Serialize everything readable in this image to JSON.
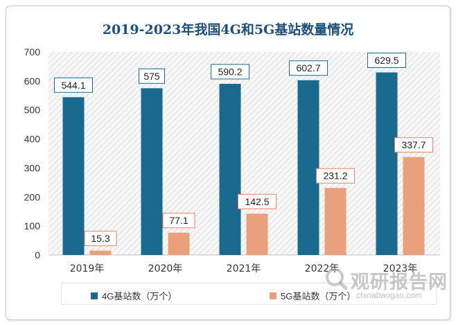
{
  "chart_data": {
    "type": "bar",
    "title": "2019-2023年我国4G和5G基站数量情况",
    "categories": [
      "2019年",
      "2020年",
      "2021年",
      "2022年",
      "2023年"
    ],
    "series": [
      {
        "name": "4G基站数（万个）",
        "values": [
          544.1,
          575,
          590.2,
          602.7,
          629.5
        ],
        "color": "#1a6a8f",
        "label_border": "#1a6a8f"
      },
      {
        "name": "5G基站数（万个）",
        "values": [
          15.3,
          77.1,
          142.5,
          231.2,
          337.7
        ],
        "color": "#e9a07c",
        "label_border": "#e9806a"
      }
    ],
    "value_labels": [
      [
        "544.1",
        "575",
        "590.2",
        "602.7",
        "629.5"
      ],
      [
        "15.3",
        "77.1",
        "142.5",
        "231.2",
        "337.7"
      ]
    ],
    "ylim": [
      0,
      700
    ],
    "yticks": [
      0,
      100,
      200,
      300,
      400,
      500,
      600,
      700
    ],
    "xlabel": "",
    "ylabel": "",
    "grid": false,
    "legend_position": "bottom",
    "plot_background": "hatched-gray"
  },
  "watermark": {
    "name": "观研报告网",
    "url": "chinabaogao.com"
  }
}
